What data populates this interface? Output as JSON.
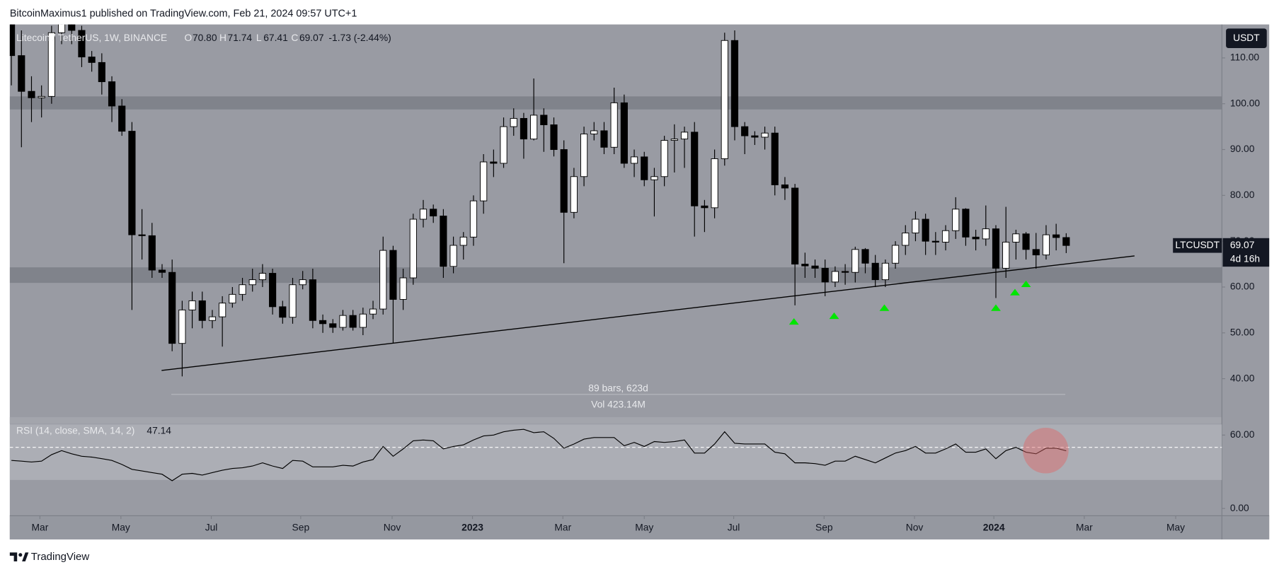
{
  "header": {
    "text": "BitcoinMaximus1 published on TradingView.com, Feb 21, 2024 09:57 UTC+1"
  },
  "footer": {
    "text": "TradingView"
  },
  "chart_data": [
    {
      "type": "candlestick",
      "title": "Litecoin / TetherUS, 1W, BINANCE",
      "ohlc": [
        [
          "O",
          "70.80"
        ],
        [
          "H",
          "71.74"
        ],
        [
          "L",
          "67.41"
        ],
        [
          "C",
          "69.07"
        ]
      ],
      "change": "-1.73 (-2.44%)",
      "symbol": "LTCUSDT",
      "currency": "USDT",
      "last": 69.07,
      "countdown": "4d 16h",
      "measure": {
        "bars": "89 bars, 623d",
        "volume": "Vol 423.14M"
      },
      "up_color": "#ffffff",
      "down_color": "#000000",
      "wick_color": "#000000",
      "grid": false,
      "x": [
        0,
        1,
        2,
        3,
        4,
        5,
        6,
        7,
        8,
        9,
        10,
        11,
        12,
        13,
        14,
        15,
        16,
        17,
        18,
        19,
        20,
        21,
        22,
        23,
        24,
        25,
        26,
        27,
        28,
        29,
        30,
        31,
        32,
        33,
        34,
        35,
        36,
        37,
        38,
        39,
        40,
        41,
        42,
        43,
        44,
        45,
        46,
        47,
        48,
        49,
        50,
        51,
        52,
        53,
        54,
        55,
        56,
        57,
        58,
        59,
        60,
        61,
        62,
        63,
        64,
        65,
        66,
        67,
        68,
        69,
        70,
        71,
        72,
        73,
        74,
        75,
        76,
        77,
        78,
        79,
        80,
        81,
        82,
        83,
        84,
        85,
        86,
        87,
        88,
        89,
        90,
        91,
        92,
        93,
        94,
        95,
        96,
        97,
        98,
        99,
        100,
        101,
        102,
        103,
        104,
        105
      ],
      "open": [
        118,
        110.5,
        102.7,
        101.3,
        101.6,
        115.5,
        119,
        116,
        110.2,
        109,
        104.8,
        99.5,
        94,
        71.4,
        71.2,
        63.7,
        63.2,
        47.7,
        55,
        57,
        52.7,
        53.5,
        56.5,
        58.4,
        60.5,
        61.6,
        63,
        55.7,
        53.4,
        60.5,
        61.6,
        52.7,
        52,
        51.2,
        53.8,
        51.2,
        54.1,
        55.2,
        68,
        57.3,
        62,
        74.8,
        77,
        75.5,
        64.5,
        69.1,
        70.9,
        78.8,
        87.3,
        87,
        95,
        96.8,
        92.3,
        97.5,
        95.4,
        90,
        76.3,
        84.1,
        93.4,
        94.1,
        90.5,
        100.2,
        87,
        88.4,
        83.4,
        84.1,
        92,
        92.3,
        93.8,
        77.7,
        77.3,
        88,
        113.8,
        95,
        93,
        92.7,
        93.6,
        82.3,
        81.6,
        65,
        64.6,
        64.1,
        61.1,
        63.4,
        63.2,
        68.2,
        65.2,
        61.6,
        65.2,
        69.1,
        71.8,
        74.8,
        70,
        69.8,
        72.3,
        77,
        70.9,
        70.5,
        72.7,
        64.1,
        69.8,
        71.6,
        68.2,
        67,
        71.4,
        70.8
      ],
      "high": [
        125,
        116,
        106,
        104,
        117,
        124,
        121,
        117,
        111.5,
        111,
        106,
        101,
        96,
        77,
        74,
        65,
        66,
        57,
        59,
        59,
        55,
        58,
        60,
        62,
        64,
        65,
        64,
        57,
        62,
        63.5,
        64,
        54,
        53,
        55,
        55,
        55.5,
        57,
        71,
        69,
        64,
        76,
        79,
        78,
        77,
        71,
        72,
        80,
        89,
        90,
        97,
        99,
        98,
        105.5,
        99,
        97,
        92,
        86,
        95,
        96,
        96,
        103.5,
        102,
        90,
        89.5,
        86,
        93,
        95.5,
        95,
        96,
        79,
        90,
        115.5,
        116,
        96,
        94,
        95,
        95,
        84,
        82.5,
        67.5,
        66,
        66,
        64.5,
        65,
        68.8,
        68.5,
        67,
        66,
        70,
        73.5,
        76.5,
        76,
        72,
        73.5,
        79.6,
        77.2,
        72.5,
        77.8,
        73.5,
        77.5,
        72.5,
        72,
        71.8,
        73.5,
        73.8,
        71.74
      ],
      "low": [
        104,
        90.5,
        96,
        97,
        100,
        113,
        113,
        108,
        107,
        102,
        96,
        93,
        55,
        66,
        62,
        62,
        46,
        40.5,
        51,
        51,
        51,
        47,
        55.5,
        57,
        59,
        60,
        54,
        52,
        52,
        59.5,
        51,
        50,
        50,
        50.5,
        50.5,
        49.5,
        53,
        54,
        47.7,
        55,
        60.5,
        73,
        74,
        62,
        63,
        66,
        69,
        76,
        84,
        86,
        93,
        88,
        92,
        89.5,
        88.5,
        65.2,
        75,
        82,
        92,
        89,
        89,
        86,
        84,
        82,
        75.4,
        82,
        85,
        86,
        71,
        72,
        75,
        86.5,
        92,
        89,
        91,
        90,
        80,
        79,
        56,
        62,
        62,
        58,
        60,
        60.5,
        61,
        63,
        60,
        60,
        64,
        67,
        70,
        67,
        67,
        68,
        70.5,
        69,
        68,
        69,
        57.6,
        62,
        66,
        66,
        64,
        66,
        68,
        67.41
      ],
      "close": [
        110.5,
        102.7,
        101.3,
        101.6,
        115.5,
        119,
        116,
        110.2,
        109,
        104.8,
        99.5,
        94,
        71.4,
        71.2,
        63.7,
        63.2,
        47.7,
        55,
        57,
        52.7,
        53.5,
        56.5,
        58.4,
        60.5,
        61.6,
        63,
        55.7,
        53.4,
        60.5,
        61.6,
        52.7,
        52,
        51.2,
        53.8,
        51.2,
        54.1,
        55.2,
        68,
        57.3,
        62,
        74.8,
        77,
        75.5,
        64.5,
        69.1,
        70.9,
        78.8,
        87.3,
        87,
        95,
        96.8,
        92.3,
        97.5,
        95.4,
        90,
        76.3,
        84.1,
        93.4,
        94.1,
        90.5,
        100.2,
        87,
        88.4,
        83.4,
        84.1,
        92,
        92.3,
        93.8,
        77.7,
        77.3,
        88,
        113.8,
        95,
        93,
        92.7,
        93.6,
        82.3,
        81.6,
        65,
        64.6,
        64.1,
        61.1,
        63.4,
        63.2,
        68.2,
        65.2,
        61.6,
        65.2,
        69.1,
        71.8,
        74.8,
        70,
        69.8,
        72.3,
        77,
        70.9,
        70.5,
        72.7,
        64.1,
        69.8,
        71.6,
        68.2,
        67,
        71.4,
        70.8,
        69.07
      ],
      "zones": [
        [
          98.75,
          101.6
        ],
        [
          60.9,
          64.3
        ]
      ],
      "zone_color": "#80838b",
      "trendline": {
        "x": [
          14.95,
          111.8
        ],
        "y": [
          41.8,
          66.8
        ],
        "color": "#000000"
      },
      "markers": {
        "x": [
          77.9,
          81.9,
          86.9,
          98.0,
          99.9,
          101.0
        ],
        "y": [
          52.5,
          53.75,
          55.5,
          55.5,
          58.9,
          60.7
        ],
        "color": "#00e600"
      },
      "xlim": [
        -0.16,
        120.5
      ],
      "ylim": [
        31.6,
        117.3
      ],
      "yticks": [
        {
          "value": 110,
          "label": "110.00"
        },
        {
          "value": 100,
          "label": "100.00"
        },
        {
          "value": 90,
          "label": "90.00"
        },
        {
          "value": 80,
          "label": "80.00"
        },
        {
          "value": 70,
          "label": "70.00"
        },
        {
          "value": 60,
          "label": "60.00"
        },
        {
          "value": 50,
          "label": "50.00"
        },
        {
          "value": 40,
          "label": "40.00"
        }
      ]
    },
    {
      "type": "line",
      "title": "RSI (14, close, SMA, 14, 2)",
      "x": [
        0,
        1,
        2,
        3,
        4,
        5,
        6,
        7,
        8,
        9,
        10,
        11,
        12,
        13,
        14,
        15,
        16,
        17,
        18,
        19,
        20,
        21,
        22,
        23,
        24,
        25,
        26,
        27,
        28,
        29,
        30,
        31,
        32,
        33,
        34,
        35,
        36,
        37,
        38,
        39,
        40,
        41,
        42,
        43,
        44,
        45,
        46,
        47,
        48,
        49,
        50,
        51,
        52,
        53,
        54,
        55,
        56,
        57,
        58,
        59,
        60,
        61,
        62,
        63,
        64,
        65,
        66,
        67,
        68,
        69,
        70,
        71,
        72,
        73,
        74,
        75,
        76,
        77,
        78,
        79,
        80,
        81,
        82,
        83,
        84,
        85,
        86,
        87,
        88,
        89,
        90,
        91,
        92,
        93,
        94,
        95,
        96,
        97,
        98,
        99,
        100,
        101,
        102,
        103,
        104,
        105
      ],
      "series": [
        {
          "name": "RSI",
          "color": "#000000",
          "values": [
            39.3,
            38.7,
            38,
            38.7,
            44,
            47.3,
            44.7,
            42.7,
            42,
            40.7,
            39.3,
            36,
            32,
            30.7,
            29.3,
            28,
            22.7,
            28,
            28.7,
            27.3,
            29.3,
            31.3,
            32.7,
            33.3,
            34.7,
            37.3,
            34.7,
            32.7,
            39.3,
            38.7,
            34,
            34,
            34,
            35.3,
            34.7,
            38,
            40,
            50.7,
            42.7,
            48.7,
            55.3,
            56,
            55.3,
            48.7,
            50.7,
            52,
            56,
            59.3,
            60,
            62.7,
            64,
            64.7,
            62,
            62.7,
            57.3,
            49.3,
            52.7,
            56.7,
            58,
            58,
            58,
            51.3,
            54,
            50.7,
            54.7,
            54,
            54.7,
            56,
            45.3,
            45.3,
            52.7,
            62.7,
            53.3,
            52.7,
            52.7,
            52.7,
            46,
            44.7,
            37.3,
            37.3,
            36.7,
            35.3,
            38.7,
            38.7,
            42.7,
            40,
            37.3,
            41.3,
            45.3,
            47.3,
            50.7,
            45.3,
            45.3,
            48.7,
            52.7,
            46,
            46,
            48.7,
            40.7,
            47.3,
            50,
            46,
            44.7,
            49.3,
            49.3,
            47.14
          ]
        }
      ],
      "band": [
        23.3,
        68.7
      ],
      "band_color": "#acaeb5",
      "midline": 50,
      "xlim": [
        -0.16,
        120.5
      ],
      "ylim": [
        -5.3,
        69.3
      ],
      "yticks": [
        {
          "value": 60,
          "label": "60.00"
        },
        {
          "value": 0,
          "label": "0.00"
        }
      ],
      "xticks": [
        {
          "value": 2.84,
          "label": "Mar"
        },
        {
          "value": 10.9,
          "label": "May"
        },
        {
          "value": 19.9,
          "label": "Jul"
        },
        {
          "value": 28.8,
          "label": "Sep"
        },
        {
          "value": 37.9,
          "label": "Nov"
        },
        {
          "value": 45.9,
          "label": "2023"
        },
        {
          "value": 54.9,
          "label": "Mar"
        },
        {
          "value": 63.0,
          "label": "May"
        },
        {
          "value": 71.9,
          "label": "Jul"
        },
        {
          "value": 80.9,
          "label": "Sep"
        },
        {
          "value": 89.9,
          "label": "Nov"
        },
        {
          "value": 97.8,
          "label": "2024"
        },
        {
          "value": 106.8,
          "label": "Mar"
        },
        {
          "value": 115.9,
          "label": "May"
        }
      ]
    }
  ]
}
